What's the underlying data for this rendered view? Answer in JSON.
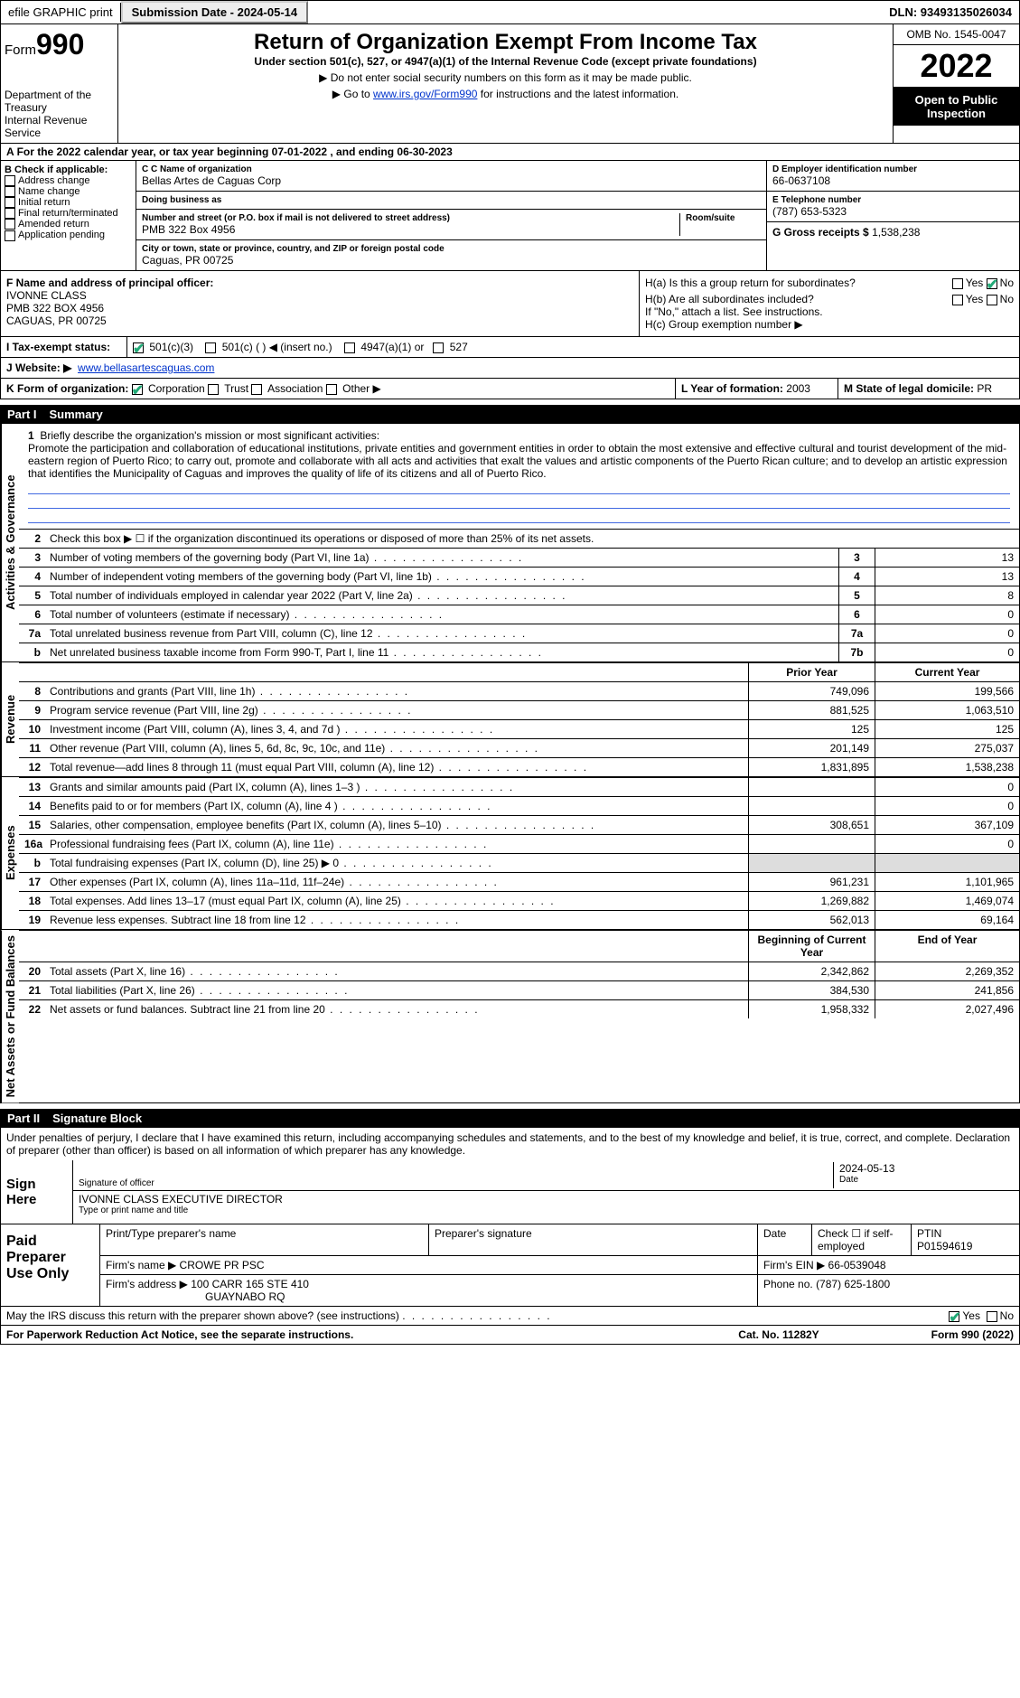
{
  "topbar": {
    "efile": "efile GRAPHIC print",
    "submission_label": "Submission Date - 2024-05-14",
    "dln": "DLN: 93493135026034"
  },
  "header": {
    "form_label": "Form",
    "form_number": "990",
    "dept": "Department of the Treasury",
    "irs": "Internal Revenue Service",
    "title": "Return of Organization Exempt From Income Tax",
    "subtitle": "Under section 501(c), 527, or 4947(a)(1) of the Internal Revenue Code (except private foundations)",
    "note1": "▶ Do not enter social security numbers on this form as it may be made public.",
    "note2_pre": "▶ Go to ",
    "note2_link": "www.irs.gov/Form990",
    "note2_post": " for instructions and the latest information.",
    "omb": "OMB No. 1545-0047",
    "year": "2022",
    "public": "Open to Public Inspection"
  },
  "sectionA": {
    "taxyear": "For the 2022 calendar year, or tax year beginning 07-01-2022   , and ending 06-30-2023",
    "b_label": "B Check if applicable:",
    "b_opts": [
      "Address change",
      "Name change",
      "Initial return",
      "Final return/terminated",
      "Amended return",
      "Application pending"
    ],
    "c_label": "C Name of organization",
    "org_name": "Bellas Artes de Caguas Corp",
    "dba_label": "Doing business as",
    "addr_label": "Number and street (or P.O. box if mail is not delivered to street address)",
    "addr": "PMB 322 Box 4956",
    "room_label": "Room/suite",
    "city_label": "City or town, state or province, country, and ZIP or foreign postal code",
    "city": "Caguas, PR  00725",
    "d_label": "D Employer identification number",
    "ein": "66-0637108",
    "e_label": "E Telephone number",
    "phone": "(787) 653-5323",
    "g_label": "G Gross receipts $",
    "g_val": "1,538,238",
    "f_label": "F  Name and address of principal officer:",
    "officer_name": "IVONNE CLASS",
    "officer_addr1": "PMB 322 BOX 4956",
    "officer_addr2": "CAGUAS, PR  00725",
    "ha": "H(a)  Is this a group return for subordinates?",
    "hb": "H(b)  Are all subordinates included?",
    "h_note": "If \"No,\" attach a list. See instructions.",
    "hc": "H(c)  Group exemption number ▶",
    "yes": "Yes",
    "no": "No",
    "i_label": "I   Tax-exempt status:",
    "i_501c3": "501(c)(3)",
    "i_501c": "501(c) (   ) ◀ (insert no.)",
    "i_4947": "4947(a)(1) or",
    "i_527": "527",
    "j_label": "J   Website: ▶",
    "website": "www.bellasartescaguas.com",
    "k_label": "K Form of organization:",
    "k_corp": "Corporation",
    "k_trust": "Trust",
    "k_assoc": "Association",
    "k_other": "Other ▶",
    "l_label": "L Year of formation:",
    "l_val": "2003",
    "m_label": "M State of legal domicile:",
    "m_val": "PR"
  },
  "part1": {
    "num": "Part I",
    "title": "Summary",
    "l1_label": "Briefly describe the organization's mission or most significant activities:",
    "mission": "Promote the participation and collaboration of educational institutions, private entities and government entities in order to obtain the most extensive and effective cultural and tourist development of the mid-eastern region of Puerto Rico; to carry out, promote and collaborate with all acts and activities that exalt the values and artistic components of the Puerto Rican culture; and to develop an artistic expression that identifies the Municipality of Caguas and improves the quality of life of its citizens and all of Puerto Rico.",
    "l2": "Check this box ▶ ☐  if the organization discontinued its operations or disposed of more than 25% of its net assets.",
    "rows_gov": [
      {
        "n": "3",
        "t": "Number of voting members of the governing body (Part VI, line 1a)",
        "b": "3",
        "v": "13"
      },
      {
        "n": "4",
        "t": "Number of independent voting members of the governing body (Part VI, line 1b)",
        "b": "4",
        "v": "13"
      },
      {
        "n": "5",
        "t": "Total number of individuals employed in calendar year 2022 (Part V, line 2a)",
        "b": "5",
        "v": "8"
      },
      {
        "n": "6",
        "t": "Total number of volunteers (estimate if necessary)",
        "b": "6",
        "v": "0"
      },
      {
        "n": "7a",
        "t": "Total unrelated business revenue from Part VIII, column (C), line 12",
        "b": "7a",
        "v": "0"
      },
      {
        "n": "b",
        "t": "Net unrelated business taxable income from Form 990-T, Part I, line 11",
        "b": "7b",
        "v": "0"
      }
    ],
    "col_prior": "Prior Year",
    "col_current": "Current Year",
    "revenue_rows": [
      {
        "n": "8",
        "t": "Contributions and grants (Part VIII, line 1h)",
        "p": "749,096",
        "c": "199,566"
      },
      {
        "n": "9",
        "t": "Program service revenue (Part VIII, line 2g)",
        "p": "881,525",
        "c": "1,063,510"
      },
      {
        "n": "10",
        "t": "Investment income (Part VIII, column (A), lines 3, 4, and 7d )",
        "p": "125",
        "c": "125"
      },
      {
        "n": "11",
        "t": "Other revenue (Part VIII, column (A), lines 5, 6d, 8c, 9c, 10c, and 11e)",
        "p": "201,149",
        "c": "275,037"
      },
      {
        "n": "12",
        "t": "Total revenue—add lines 8 through 11 (must equal Part VIII, column (A), line 12)",
        "p": "1,831,895",
        "c": "1,538,238"
      }
    ],
    "expense_rows": [
      {
        "n": "13",
        "t": "Grants and similar amounts paid (Part IX, column (A), lines 1–3 )",
        "p": "",
        "c": "0"
      },
      {
        "n": "14",
        "t": "Benefits paid to or for members (Part IX, column (A), line 4 )",
        "p": "",
        "c": "0"
      },
      {
        "n": "15",
        "t": "Salaries, other compensation, employee benefits (Part IX, column (A), lines 5–10)",
        "p": "308,651",
        "c": "367,109"
      },
      {
        "n": "16a",
        "t": "Professional fundraising fees (Part IX, column (A), line 11e)",
        "p": "",
        "c": "0"
      },
      {
        "n": "b",
        "t": "Total fundraising expenses (Part IX, column (D), line 25) ▶ 0",
        "p": "SHADE",
        "c": "SHADE"
      },
      {
        "n": "17",
        "t": "Other expenses (Part IX, column (A), lines 11a–11d, 11f–24e)",
        "p": "961,231",
        "c": "1,101,965"
      },
      {
        "n": "18",
        "t": "Total expenses. Add lines 13–17 (must equal Part IX, column (A), line 25)",
        "p": "1,269,882",
        "c": "1,469,074"
      },
      {
        "n": "19",
        "t": "Revenue less expenses. Subtract line 18 from line 12",
        "p": "562,013",
        "c": "69,164"
      }
    ],
    "col_begin": "Beginning of Current Year",
    "col_end": "End of Year",
    "net_rows": [
      {
        "n": "20",
        "t": "Total assets (Part X, line 16)",
        "p": "2,342,862",
        "c": "2,269,352"
      },
      {
        "n": "21",
        "t": "Total liabilities (Part X, line 26)",
        "p": "384,530",
        "c": "241,856"
      },
      {
        "n": "22",
        "t": "Net assets or fund balances. Subtract line 21 from line 20",
        "p": "1,958,332",
        "c": "2,027,496"
      }
    ],
    "side_gov": "Activities & Governance",
    "side_rev": "Revenue",
    "side_exp": "Expenses",
    "side_net": "Net Assets or Fund Balances"
  },
  "part2": {
    "num": "Part II",
    "title": "Signature Block",
    "decl": "Under penalties of perjury, I declare that I have examined this return, including accompanying schedules and statements, and to the best of my knowledge and belief, it is true, correct, and complete. Declaration of preparer (other than officer) is based on all information of which preparer has any knowledge.",
    "sign_here": "Sign Here",
    "sig_officer": "Signature of officer",
    "sig_date": "2024-05-13",
    "date_lab": "Date",
    "officer_typed": "IVONNE CLASS  EXECUTIVE DIRECTOR",
    "typed_lab": "Type or print name and title",
    "paid_prep": "Paid Preparer Use Only",
    "pt_name": "Print/Type preparer's name",
    "pt_sig": "Preparer's signature",
    "pt_date": "Date",
    "pt_check": "Check ☐ if self-employed",
    "ptin_lab": "PTIN",
    "ptin": "P01594619",
    "firm_name_lab": "Firm's name    ▶",
    "firm_name": "CROWE PR PSC",
    "firm_ein_lab": "Firm's EIN ▶",
    "firm_ein": "66-0539048",
    "firm_addr_lab": "Firm's address ▶",
    "firm_addr": "100 CARR 165 STE 410",
    "firm_city": "GUAYNABO RQ",
    "firm_phone_lab": "Phone no.",
    "firm_phone": "(787) 625-1800",
    "discuss": "May the IRS discuss this return with the preparer shown above? (see instructions)",
    "paperwork": "For Paperwork Reduction Act Notice, see the separate instructions.",
    "cat": "Cat. No. 11282Y",
    "form_foot": "Form 990 (2022)"
  }
}
